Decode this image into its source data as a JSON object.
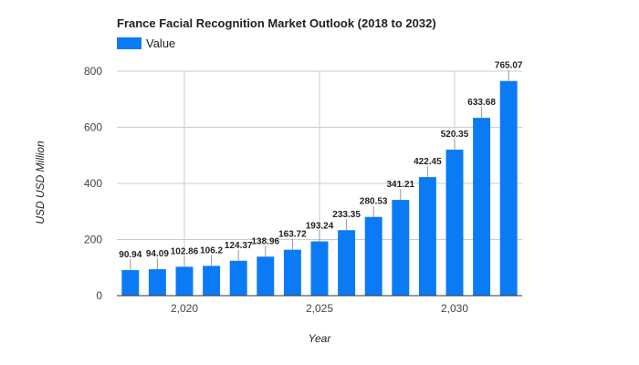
{
  "chart_data": {
    "type": "bar",
    "title": "France Facial Recognition Market Outlook (2018 to 2032)",
    "xlabel": "Year",
    "ylabel": "USD USD Million",
    "x": [
      2018,
      2019,
      2020,
      2021,
      2022,
      2023,
      2024,
      2025,
      2026,
      2027,
      2028,
      2029,
      2030,
      2031,
      2032
    ],
    "series": [
      {
        "name": "Value",
        "values": [
          90.94,
          94.09,
          102.86,
          106.2,
          124.37,
          138.96,
          163.72,
          193.24,
          233.35,
          280.53,
          341.21,
          422.45,
          520.35,
          633.68,
          765.07
        ],
        "labels": [
          "90.94",
          "94.09",
          "102.86",
          "106.2",
          "124.37",
          "138.96",
          "163.72",
          "193.24",
          "233.35",
          "280.53",
          "341.21",
          "422.45",
          "520.35",
          "633.68",
          "765.07"
        ]
      }
    ],
    "ylim": [
      0,
      800
    ],
    "yticks": [
      0,
      200,
      400,
      600,
      800
    ],
    "xticks": [
      2020,
      2025,
      2030
    ],
    "xtick_labels": [
      "2,020",
      "2,025",
      "2,030"
    ],
    "xlim": [
      2017.5,
      2032.5
    ],
    "grid": true,
    "legend_position": "top-left",
    "colors": {
      "bar": "#0a7bf5",
      "grid": "#cccccc",
      "axis": "#333333"
    }
  }
}
